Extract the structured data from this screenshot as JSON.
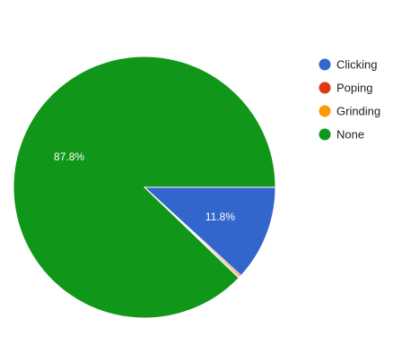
{
  "chart_data": {
    "type": "pie",
    "labels": [
      "Clicking",
      "Poping",
      "Grinding",
      "None"
    ],
    "values": [
      11.8,
      0.2,
      0.2,
      87.8
    ],
    "colors": [
      "#3366cc",
      "#dc3912",
      "#ff9900",
      "#109618"
    ],
    "slice_labels": [
      "11.8%",
      "",
      "",
      "87.8%"
    ],
    "legend_position": "right",
    "start_angle_deg": 90,
    "direction": "clockwise"
  }
}
